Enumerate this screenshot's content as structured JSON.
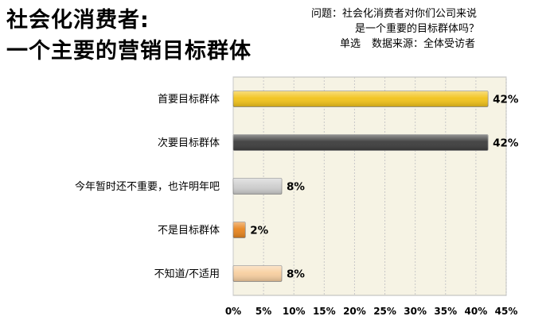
{
  "header": {
    "title_line1": "社会化消费者:",
    "title_line2": "一个主要的营销目标群体",
    "question_line1": "问题：社会化消费者对你们公司来说",
    "question_line2": "是一个重要的目标群体吗？",
    "question_type": "单选",
    "data_source": "数据来源：全体受访者"
  },
  "chart_data": {
    "type": "bar",
    "orientation": "horizontal",
    "categories": [
      "首要目标群体",
      "次要目标群体",
      "今年暂时还不重要，也许明年吧",
      "不是目标群体",
      "不知道/不适用"
    ],
    "values": [
      42,
      42,
      8,
      2,
      8
    ],
    "value_labels": [
      "42%",
      "42%",
      "8%",
      "2%",
      "8%"
    ],
    "colors": [
      "#f2c31a",
      "#3c3c3c",
      "#cfcfcf",
      "#e8851e",
      "#f8cfa0"
    ],
    "xlim": [
      0,
      45
    ],
    "xticks": [
      0,
      5,
      10,
      15,
      20,
      25,
      30,
      35,
      40,
      45
    ],
    "xtick_labels": [
      "0%",
      "5%",
      "10%",
      "15%",
      "20%",
      "25%",
      "30%",
      "35%",
      "40%",
      "45%"
    ],
    "grid": true,
    "plot_background": "#f6f3e4",
    "title": "",
    "xlabel": "",
    "ylabel": ""
  }
}
